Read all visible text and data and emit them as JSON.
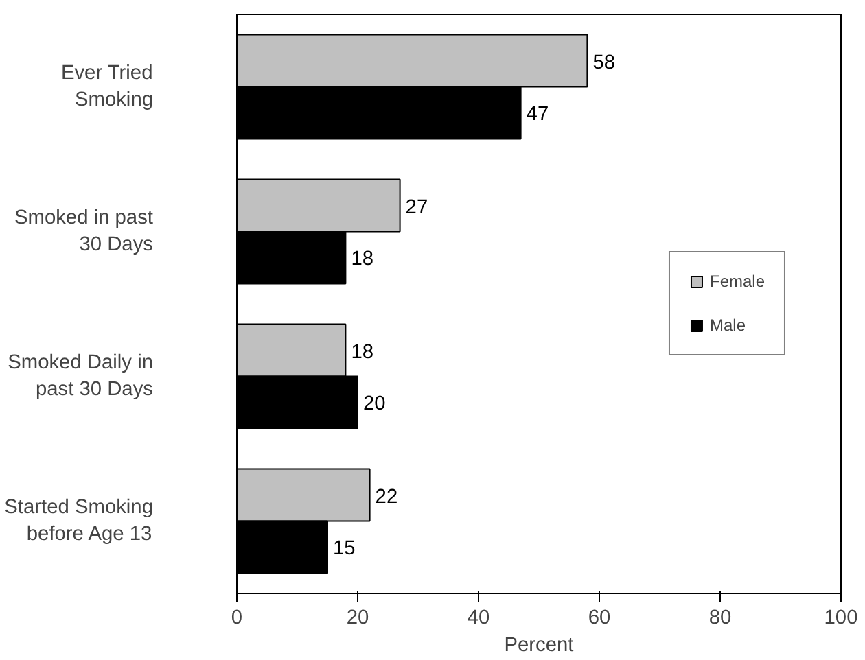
{
  "chart_data": {
    "type": "bar",
    "orientation": "horizontal",
    "categories": [
      "Ever Tried Smoking",
      "Smoked in past 30 Days",
      "Smoked Daily in past 30 Days",
      "Started Smoking before Age 13"
    ],
    "series": [
      {
        "name": "Female",
        "color": "#c0c0c0",
        "values": [
          58,
          27,
          18,
          22
        ]
      },
      {
        "name": "Male",
        "color": "#000000",
        "values": [
          47,
          18,
          20,
          15
        ]
      }
    ],
    "xlabel": "Percent",
    "xlim": [
      0,
      100
    ],
    "xticks": [
      0,
      20,
      40,
      60,
      80,
      100
    ],
    "data_labels": true,
    "legend": "right",
    "grid": false
  }
}
